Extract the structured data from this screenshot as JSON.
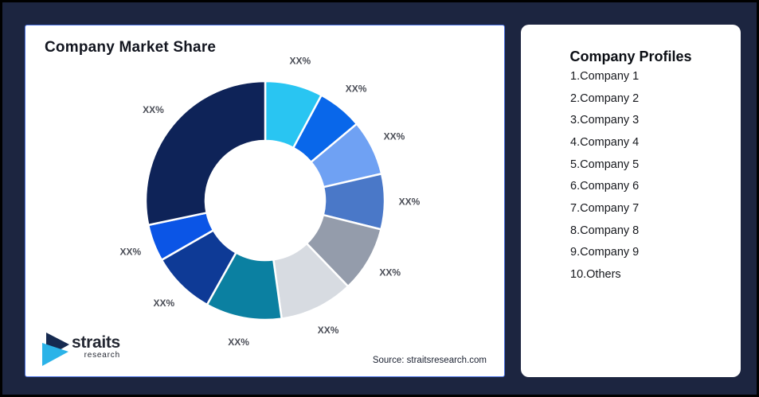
{
  "theme": {
    "background": "#1C2540",
    "outer_border": "#000000",
    "card_background": "#FFFFFF",
    "chart_card_border": "#4A71E0",
    "slice_label_color": "#4B4E57",
    "logo_navy": "#162A50",
    "logo_cyan": "#2BB3E8"
  },
  "left_card": {
    "title": "Company Market Share",
    "source": "Source: straitsresearch.com",
    "logo": {
      "name": "straits",
      "tagline": "research"
    }
  },
  "right_card": {
    "title": "Company Profiles",
    "items": [
      "1.Company 1",
      "2.Company 2",
      "3.Company 3",
      "4.Company 4",
      "5.Company 5",
      "6.Company 6",
      "7.Company 7",
      "8.Company 8",
      "9.Company 9",
      "10.Others"
    ]
  },
  "chart_data": {
    "type": "pie",
    "subtype": "donut",
    "title": "Company Market Share",
    "note": "All slice data labels shown as placeholder text XX%",
    "start_angle_deg": 0,
    "direction": "clockwise",
    "outer_radius_px": 150,
    "inner_radius_px": 75,
    "label_radius_px": 181,
    "segments": [
      {
        "name": "Company 1",
        "label": "XX%",
        "angle_pct_est": 7.8,
        "color": "#29C5F2"
      },
      {
        "name": "Company 2",
        "label": "XX%",
        "angle_pct_est": 6.1,
        "color": "#0967EA"
      },
      {
        "name": "Company 3",
        "label": "XX%",
        "angle_pct_est": 7.5,
        "color": "#6FA1F3"
      },
      {
        "name": "Company 4",
        "label": "XX%",
        "angle_pct_est": 7.5,
        "color": "#4A78C8"
      },
      {
        "name": "Company 5",
        "label": "XX%",
        "angle_pct_est": 8.9,
        "color": "#949CAB"
      },
      {
        "name": "Company 6",
        "label": "XX%",
        "angle_pct_est": 10.0,
        "color": "#D7DBE1"
      },
      {
        "name": "Company 7",
        "label": "XX%",
        "angle_pct_est": 10.3,
        "color": "#0B80A1"
      },
      {
        "name": "Company 8",
        "label": "XX%",
        "angle_pct_est": 8.6,
        "color": "#0E3A96"
      },
      {
        "name": "Company 9",
        "label": "XX%",
        "angle_pct_est": 5.0,
        "color": "#0B55E6"
      },
      {
        "name": "Others",
        "label": "XX%",
        "angle_pct_est": 28.3,
        "color": "#0E2358"
      }
    ]
  }
}
